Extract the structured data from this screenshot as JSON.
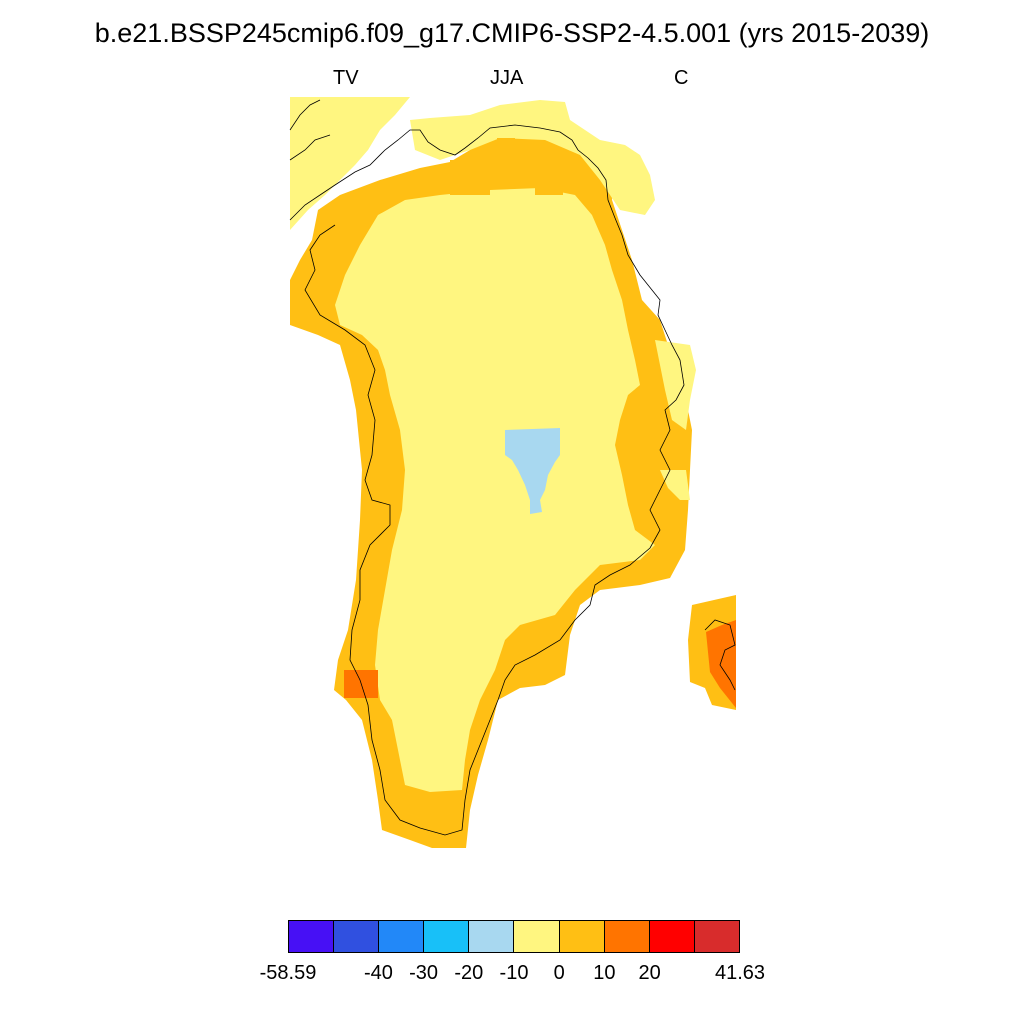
{
  "title": "b.e21.BSSP245cmip6.f09_g17.CMIP6-SSP2-4.5.001 (yrs 2015-2039)",
  "subtitle_left": "TV",
  "subtitle_center": "JJA",
  "subtitle_right": "C",
  "colorbar": {
    "colors": [
      "#4710f5",
      "#3050e0",
      "#2288f8",
      "#18c0f8",
      "#a8d8f0",
      "#fff680",
      "#ffbf14",
      "#ff7400",
      "#ff0000",
      "#d82c2c"
    ],
    "ticks": [
      "-58.59",
      "-40",
      "-30",
      "-20",
      "-10",
      "0",
      "10",
      "20",
      "41.63"
    ]
  },
  "legend_colors": {
    "pale_yellow": "#fff680",
    "light_orange": "#ffbf14",
    "orange": "#ff7400",
    "light_blue": "#a8d8f0"
  }
}
